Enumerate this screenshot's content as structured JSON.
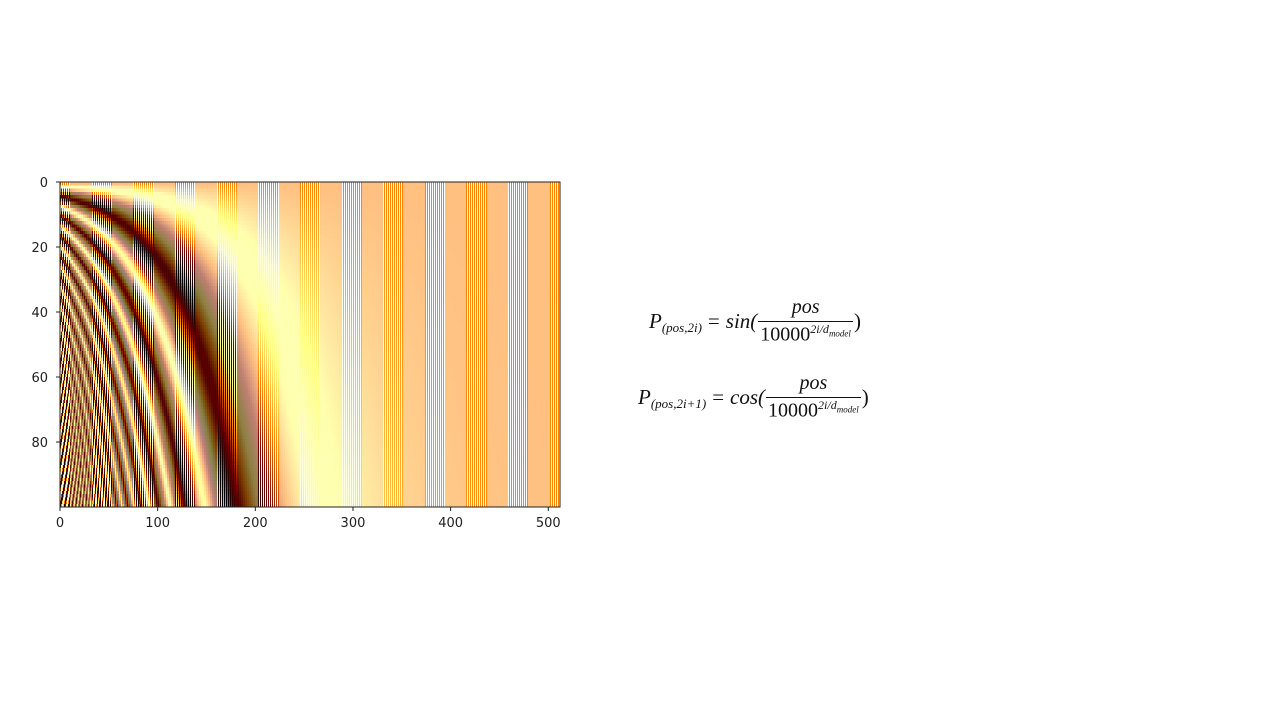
{
  "chart_data": {
    "type": "heatmap",
    "title": "",
    "xlabel": "",
    "ylabel": "",
    "rows": 100,
    "cols": 512,
    "d_model": 512,
    "xlim": [
      0,
      512
    ],
    "ylim": [
      100,
      0
    ],
    "x_ticks": [
      "0",
      "100",
      "200",
      "300",
      "400",
      "500"
    ],
    "y_ticks": [
      "0",
      "20",
      "40",
      "60",
      "80"
    ],
    "colormap": "afmhot",
    "values_range": [
      -1,
      1
    ],
    "description_of_values": "PE(pos, 2i) = sin(pos / 10000^(2i/d_model)); PE(pos, 2i+1) = cos(pos / 10000^(2i/d_model))"
  },
  "formulas": {
    "sin_formula": {
      "lhs": "P",
      "lhs_sub": "(pos,2i)",
      "eq": "=",
      "func": "sin(",
      "numerator": "pos",
      "denominator_base": "10000",
      "exponent": "2i/d",
      "exponent_sub": "model",
      "close": ")"
    },
    "cos_formula": {
      "lhs": "P",
      "lhs_sub": "(pos,2i+1)",
      "eq": "=",
      "func": "cos(",
      "numerator": "pos",
      "denominator_base": "10000",
      "exponent": "2i/d",
      "exponent_sub": "model",
      "close": ")"
    }
  }
}
